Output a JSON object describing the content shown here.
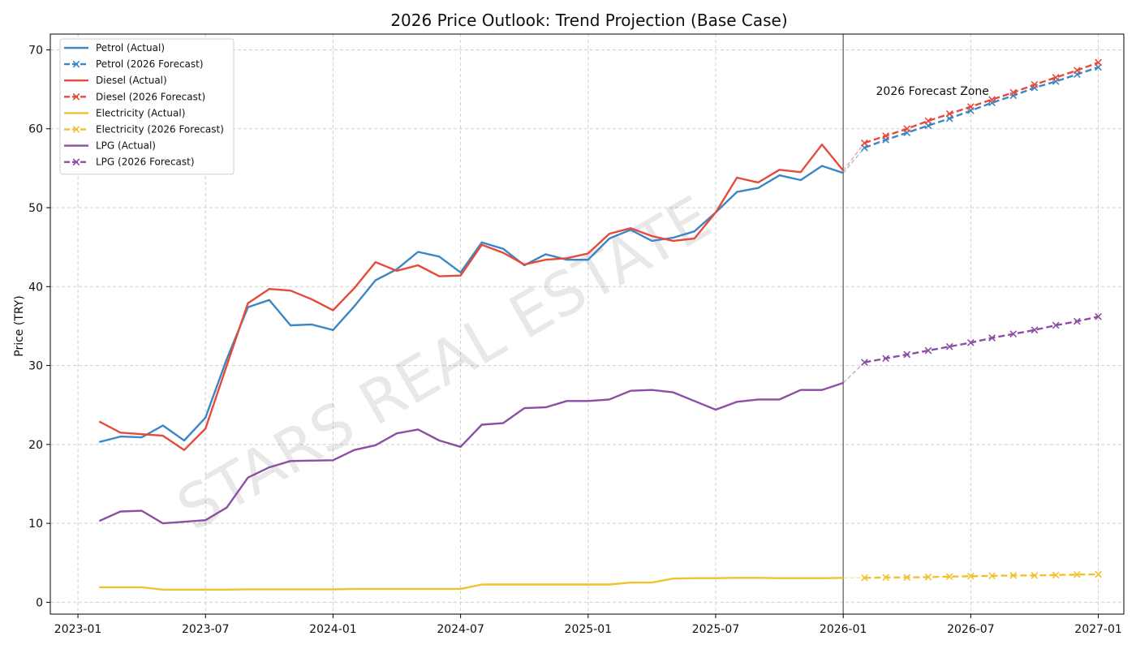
{
  "chart_data": {
    "type": "line",
    "title": "2026 Price Outlook: Trend Projection (Base Case)",
    "xlabel": "",
    "ylabel": "Price (TRY)",
    "ylim": [
      -1.5,
      72
    ],
    "xlim_months": [
      -1.3,
      49.2
    ],
    "grid": true,
    "legend_position": "top-left",
    "x_ticks": [
      {
        "month": 0,
        "label": "2023-01"
      },
      {
        "month": 6,
        "label": "2023-07"
      },
      {
        "month": 12,
        "label": "2024-01"
      },
      {
        "month": 18,
        "label": "2024-07"
      },
      {
        "month": 24,
        "label": "2025-01"
      },
      {
        "month": 30,
        "label": "2025-07"
      },
      {
        "month": 36,
        "label": "2026-01"
      },
      {
        "month": 42,
        "label": "2026-07"
      },
      {
        "month": 48,
        "label": "2027-01"
      }
    ],
    "y_ticks": [
      0,
      10,
      20,
      30,
      40,
      50,
      60,
      70
    ],
    "forecast_start_month": 36,
    "annotation": {
      "text": "2026 Forecast Zone",
      "month": 40.2,
      "value": 64.8
    },
    "watermark": "STARS REAL ESTATE",
    "x_actual_months": [
      1,
      2,
      3,
      4,
      5,
      6,
      7,
      8,
      9,
      10,
      11,
      12,
      13,
      14,
      15,
      16,
      17,
      18,
      19,
      20,
      21,
      22,
      23,
      24,
      25,
      26,
      27,
      28,
      29,
      30,
      31,
      32,
      33,
      34,
      35,
      36
    ],
    "x_forecast_months": [
      37,
      38,
      39,
      40,
      41,
      42,
      43,
      44,
      45,
      46,
      47,
      48
    ],
    "series": [
      {
        "name": "Petrol (Actual)",
        "color": "#3b87c4",
        "style": "solid",
        "marker": "none",
        "values": [
          20.3,
          21.0,
          20.9,
          22.4,
          20.5,
          23.4,
          30.8,
          37.4,
          38.3,
          35.1,
          35.2,
          34.5,
          37.5,
          40.8,
          42.2,
          44.4,
          43.8,
          41.8,
          45.6,
          44.8,
          42.7,
          44.1,
          43.4,
          43.4,
          46.1,
          47.2,
          45.8,
          46.2,
          47.0,
          49.4,
          52.0,
          52.5,
          54.1,
          53.5,
          55.3,
          54.4
        ]
      },
      {
        "name": "Petrol (2026 Forecast)",
        "color": "#3b87c4",
        "style": "dashed",
        "marker": "x",
        "values": [
          57.6,
          58.6,
          59.5,
          60.4,
          61.3,
          62.3,
          63.3,
          64.2,
          65.2,
          66.0,
          66.9,
          67.8
        ]
      },
      {
        "name": "Diesel (Actual)",
        "color": "#e64a3b",
        "style": "solid",
        "marker": "none",
        "values": [
          22.9,
          21.5,
          21.3,
          21.1,
          19.3,
          22.0,
          30.0,
          37.9,
          39.7,
          39.5,
          38.4,
          37.0,
          39.8,
          43.1,
          42.0,
          42.7,
          41.3,
          41.4,
          45.3,
          44.3,
          42.8,
          43.4,
          43.6,
          44.2,
          46.7,
          47.4,
          46.4,
          45.8,
          46.1,
          49.4,
          53.8,
          53.2,
          54.8,
          54.5,
          58.0,
          54.7
        ]
      },
      {
        "name": "Diesel (2026 Forecast)",
        "color": "#e64a3b",
        "style": "dashed",
        "marker": "x",
        "values": [
          58.2,
          59.1,
          60.0,
          61.0,
          61.9,
          62.8,
          63.7,
          64.6,
          65.6,
          66.5,
          67.4,
          68.4
        ]
      },
      {
        "name": "Electricity (Actual)",
        "color": "#f2c12e",
        "style": "solid",
        "marker": "none",
        "values": [
          1.9,
          1.9,
          1.9,
          1.6,
          1.6,
          1.6,
          1.6,
          1.65,
          1.65,
          1.65,
          1.65,
          1.65,
          1.7,
          1.7,
          1.7,
          1.7,
          1.7,
          1.7,
          2.25,
          2.25,
          2.25,
          2.25,
          2.25,
          2.25,
          2.25,
          2.5,
          2.5,
          3.0,
          3.05,
          3.05,
          3.1,
          3.1,
          3.05,
          3.05,
          3.05,
          3.1
        ]
      },
      {
        "name": "Electricity (2026 Forecast)",
        "color": "#f2c12e",
        "style": "dashed",
        "marker": "x",
        "values": [
          3.1,
          3.15,
          3.15,
          3.2,
          3.25,
          3.3,
          3.35,
          3.4,
          3.4,
          3.45,
          3.5,
          3.55
        ]
      },
      {
        "name": "LPG (Actual)",
        "color": "#8b4fa3",
        "style": "solid",
        "marker": "none",
        "values": [
          10.3,
          11.5,
          11.6,
          10.0,
          10.2,
          10.4,
          12.0,
          15.8,
          17.1,
          17.9,
          17.95,
          18.0,
          19.3,
          19.9,
          21.4,
          21.9,
          20.5,
          19.7,
          22.5,
          22.7,
          24.6,
          24.7,
          25.5,
          25.5,
          25.7,
          26.8,
          26.9,
          26.6,
          25.5,
          24.4,
          25.4,
          25.7,
          25.7,
          26.9,
          26.9,
          27.8
        ]
      },
      {
        "name": "LPG (2026 Forecast)",
        "color": "#8b4fa3",
        "style": "dashed",
        "marker": "x",
        "values": [
          30.4,
          30.9,
          31.4,
          31.9,
          32.4,
          32.9,
          33.5,
          34.0,
          34.5,
          35.1,
          35.6,
          36.2
        ]
      }
    ]
  }
}
